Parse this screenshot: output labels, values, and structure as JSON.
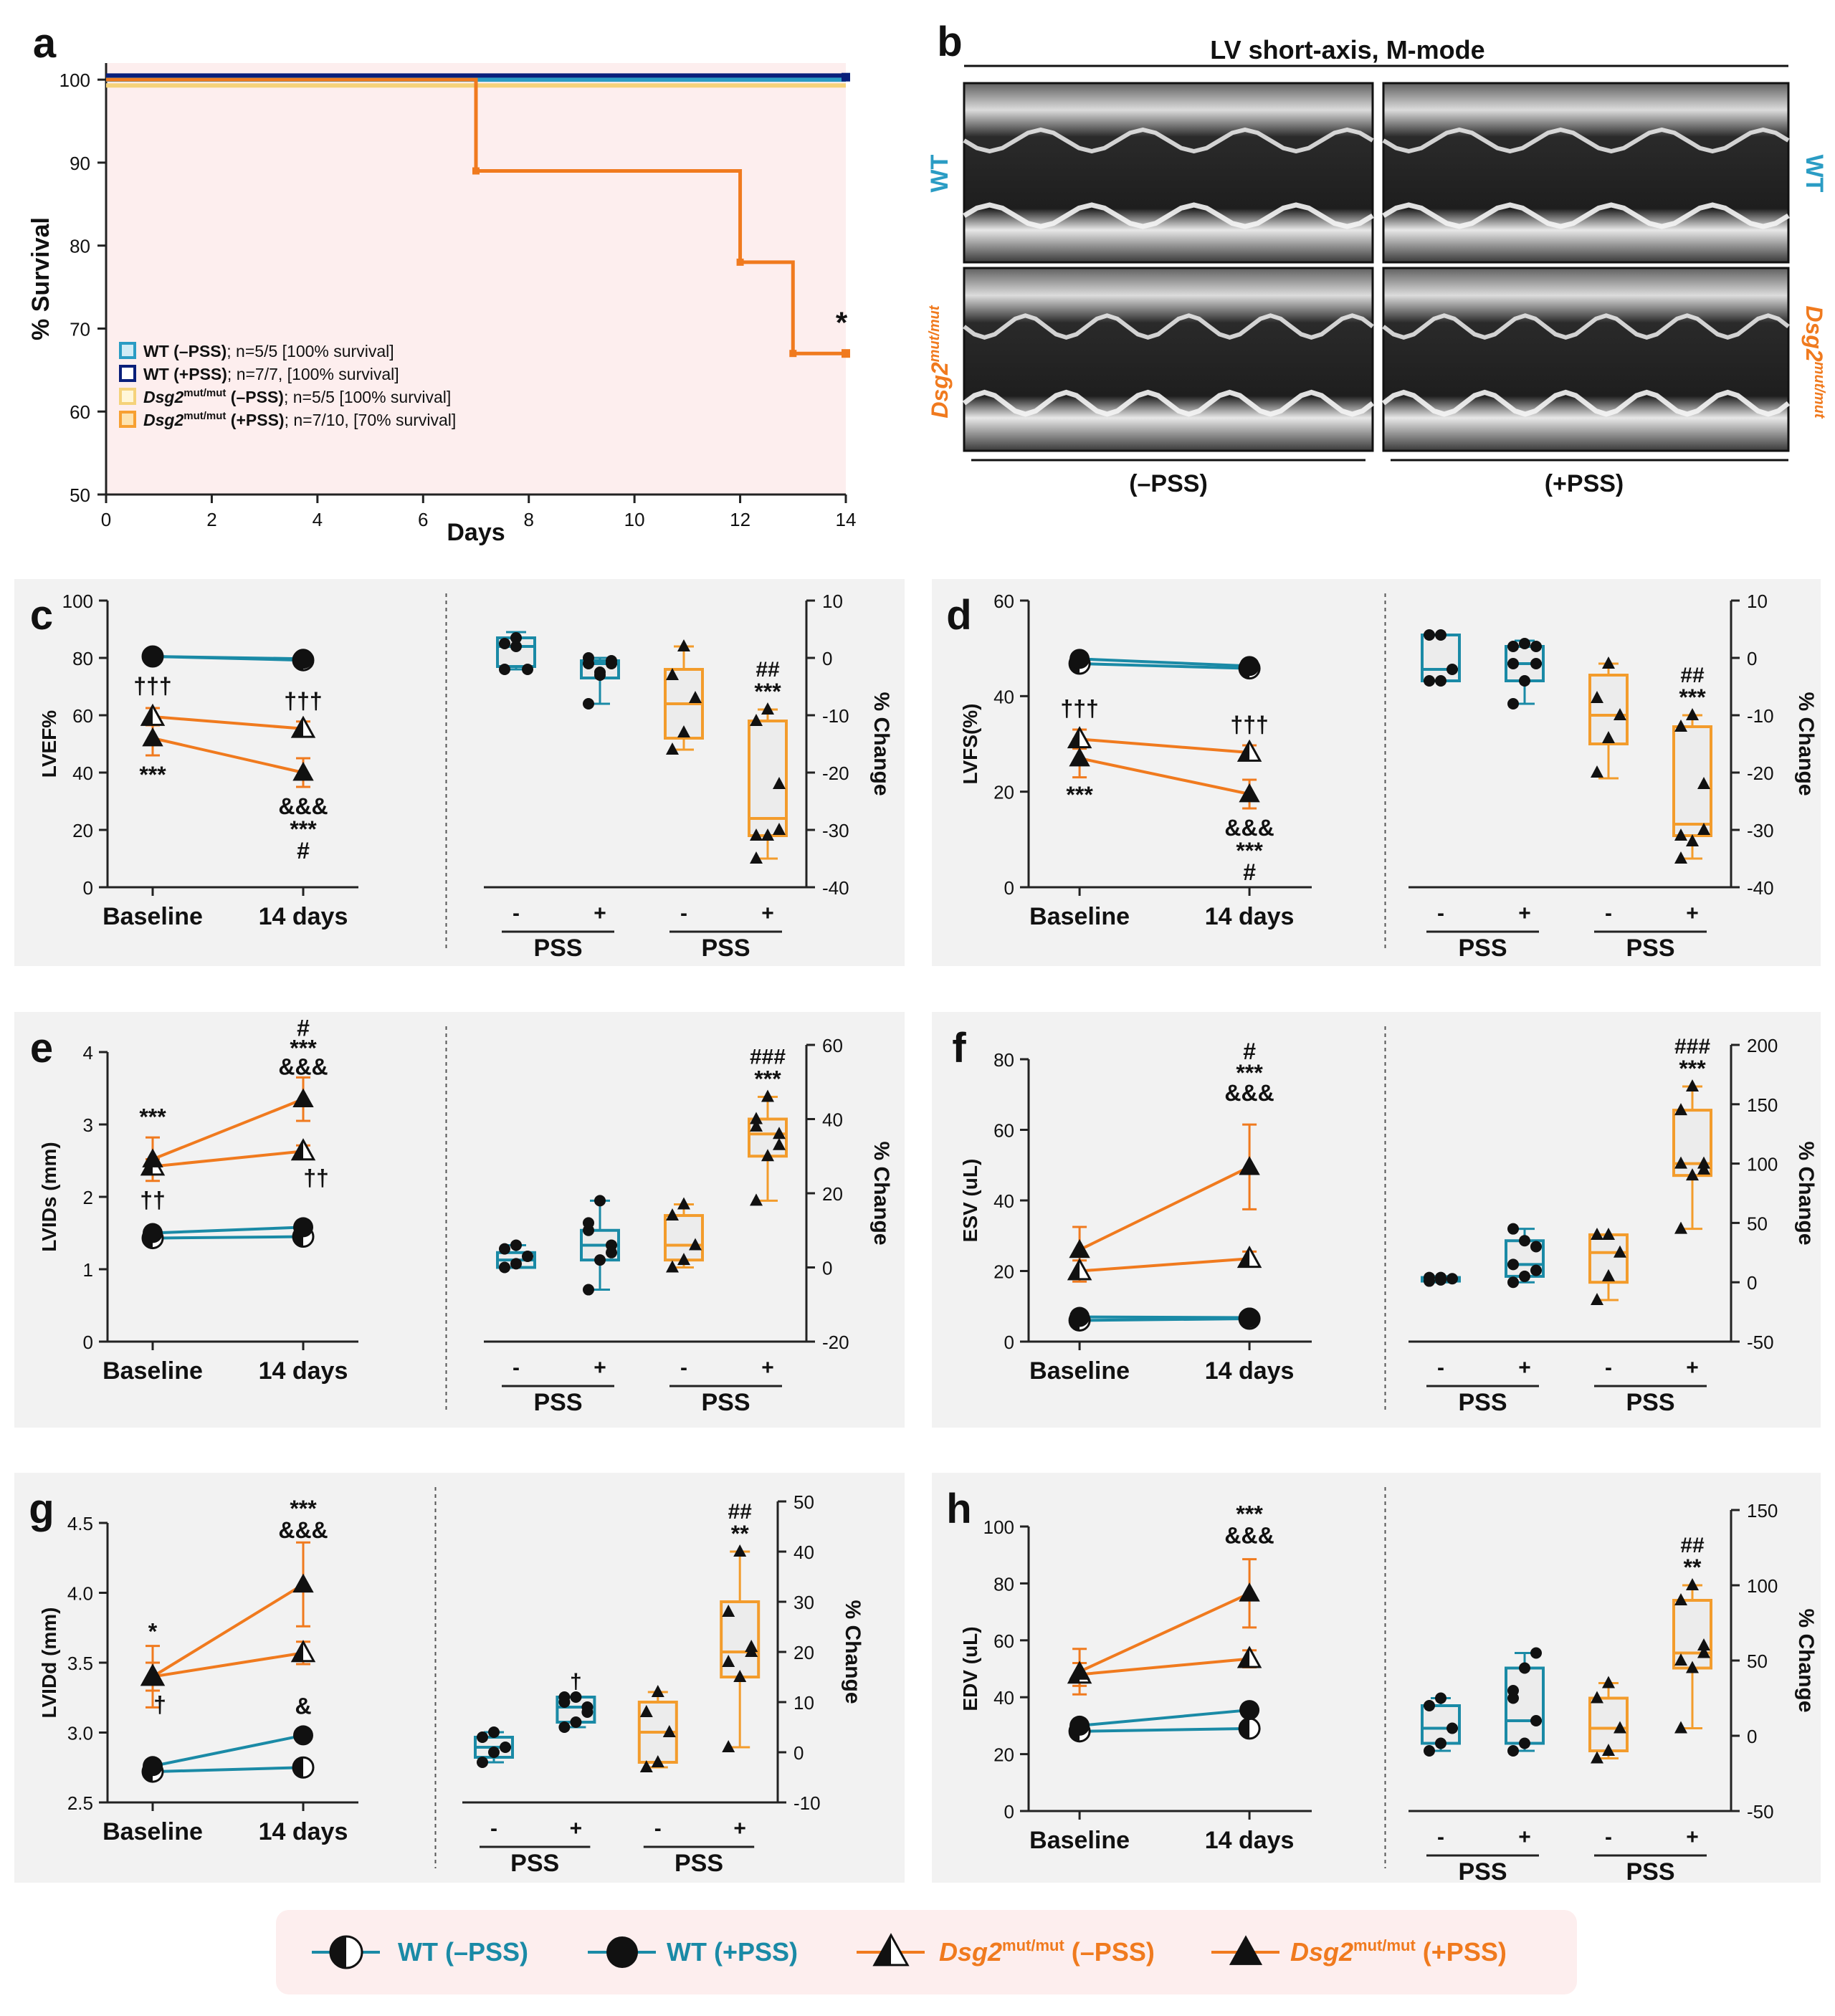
{
  "colors": {
    "wt_minus": "#2a9cc4",
    "wt_plus": "#0a1f7a",
    "dsg_minus": "#f5d27a",
    "dsg_plus": "#f07a1e",
    "teal": "#1a8aa6",
    "orange": "#f07a1e",
    "panel_bg": "#f2f2f2",
    "pink_bg": "#fdeeee"
  },
  "panel_a": {
    "letter": "a",
    "chart_data": {
      "type": "line",
      "xlabel": "Days",
      "ylabel": "% Survival",
      "xlim": [
        0,
        14
      ],
      "ylim": [
        50,
        102
      ],
      "xticks": [
        "0",
        "2",
        "4",
        "6",
        "8",
        "10",
        "12",
        "14"
      ],
      "yticks": [
        "50",
        "60",
        "70",
        "80",
        "90",
        "100"
      ],
      "annotation": "*",
      "series": [
        {
          "name": "WT (–PSS); n=5/5 [100% survival]",
          "color": "#2a9cc4",
          "x": [
            0,
            14
          ],
          "y": [
            100,
            100
          ]
        },
        {
          "name": "WT (+PSS); n=7/7, [100% survival]",
          "color": "#0a1f7a",
          "x": [
            0,
            14
          ],
          "y": [
            100.5,
            100.5
          ]
        },
        {
          "name": "Dsg2mut/mut (–PSS); n=5/5 [100% survival]",
          "color": "#f5d27a",
          "x": [
            0,
            14
          ],
          "y": [
            99.3,
            99.3
          ]
        },
        {
          "name": "Dsg2mut/mut (+PSS); n=7/10, [70% survival]",
          "color": "#f07a1e",
          "x": [
            0,
            7,
            7,
            12,
            12,
            13,
            13,
            14
          ],
          "y": [
            100,
            100,
            89,
            89,
            78,
            78,
            67,
            67
          ]
        }
      ]
    },
    "legend": [
      {
        "bold": "WT (–PSS)",
        "rest": "; n=5/5 [100% survival]",
        "color": "#2a9cc4",
        "fill": "#d0ecf6"
      },
      {
        "bold": "WT (+PSS)",
        "rest": "; n=7/7, [100% survival]",
        "color": "#0a1f7a",
        "fill": "#ffffff"
      },
      {
        "bold": "Dsg2",
        "sup": "mut/mut",
        "bold2": " (–PSS)",
        "rest": "; n=5/5 [100% survival]",
        "color": "#f5d27a",
        "fill": "#fff6d8"
      },
      {
        "bold": "Dsg2",
        "sup": "mut/mut",
        "bold2": " (+PSS)",
        "rest": "; n=7/10, [70% survival]",
        "color": "#f7a032",
        "fill": "#fde3b0"
      }
    ]
  },
  "panel_b": {
    "letter": "b",
    "title": "LV short-axis, M-mode",
    "row_wt": "WT",
    "row_dsg": "Dsg2",
    "row_dsg_sup": "mut/mut",
    "col_minus": "(–PSS)",
    "col_plus": "(+PSS)"
  },
  "legend_bottom": [
    {
      "label": "WT (–PSS)",
      "marker": "half-circle",
      "color": "#1a8aa6"
    },
    {
      "label": "WT (+PSS)",
      "marker": "circle",
      "color": "#1a8aa6"
    },
    {
      "label": "Dsg2",
      "sup": "mut/mut",
      "label2": " (–PSS)",
      "marker": "half-triangle",
      "color": "#f07a1e"
    },
    {
      "label": "Dsg2",
      "sup": "mut/mut",
      "label2": " (+PSS)",
      "marker": "triangle",
      "color": "#f07a1e"
    }
  ],
  "chart_data": [
    {
      "id": "c",
      "letter": "c",
      "type": "line",
      "ylabel": "LVEF%",
      "ylim": [
        0,
        100
      ],
      "yticks": [
        "0",
        "20",
        "40",
        "60",
        "80",
        "100"
      ],
      "categories": [
        "Baseline",
        "14 days"
      ],
      "series": [
        {
          "name": "WT (–PSS)",
          "values": [
            80.5,
            79.2
          ]
        },
        {
          "name": "WT (+PSS)",
          "values": [
            80.5,
            79.7
          ]
        },
        {
          "name": "Dsg2mut/mut (–PSS)",
          "values": [
            59.5,
            55.3
          ],
          "err": [
            3,
            2.5
          ]
        },
        {
          "name": "Dsg2mut/mut (+PSS)",
          "values": [
            52,
            40
          ],
          "err": [
            6,
            5
          ]
        }
      ],
      "annot": [
        "†††",
        "***",
        "†††",
        "&&&",
        "***",
        "#"
      ],
      "box": {
        "ylabel": "% Change",
        "ylim": [
          -40,
          10
        ],
        "yticks": [
          "-40",
          "-30",
          "-20",
          "-10",
          "0",
          "10"
        ],
        "group_label": "PSS",
        "xticks": [
          "-",
          "+",
          "-",
          "+"
        ],
        "groups": [
          {
            "name": "WT -PSS",
            "q": [
              -2,
              -1.5,
              2,
              3.5,
              4.5
            ]
          },
          {
            "name": "WT +PSS",
            "q": [
              -8,
              -3.5,
              -1,
              -0.5,
              0
            ]
          },
          {
            "name": "Dsg2 -PSS",
            "q": [
              -16,
              -14,
              -8,
              -2,
              2
            ]
          },
          {
            "name": "Dsg2 +PSS",
            "q": [
              -35,
              -31,
              -28,
              -11,
              -9
            ]
          }
        ],
        "points": [
          [
            2.5,
            2,
            -2,
            -2,
            3.5
          ],
          [
            -1,
            -3,
            -0.5,
            -8,
            -2.5,
            -1,
            0
          ],
          [
            -16,
            -13,
            -7,
            -3,
            2
          ],
          [
            -35,
            -31,
            -22,
            -11,
            -9,
            -30,
            -31
          ]
        ],
        "annot": [
          "##",
          "***"
        ]
      }
    },
    {
      "id": "d",
      "letter": "d",
      "type": "line",
      "ylabel": "LVFS(%)",
      "ylim": [
        0,
        60
      ],
      "yticks": [
        "0",
        "20",
        "40",
        "60"
      ],
      "categories": [
        "Baseline",
        "14 days"
      ],
      "series": [
        {
          "name": "WT (–PSS)",
          "values": [
            46.8,
            45.8
          ]
        },
        {
          "name": "WT (+PSS)",
          "values": [
            47.8,
            46.3
          ]
        },
        {
          "name": "Dsg2mut/mut (–PSS)",
          "values": [
            31,
            28.2
          ],
          "err": [
            2,
            1.5
          ]
        },
        {
          "name": "Dsg2mut/mut (+PSS)",
          "values": [
            27,
            19.5
          ],
          "err": [
            4,
            3
          ]
        }
      ],
      "annot": [
        "†††",
        "***",
        "†††",
        "&&&",
        "***",
        "#"
      ],
      "box": {
        "ylabel": "% Change",
        "ylim": [
          -40,
          10
        ],
        "yticks": [
          "-40",
          "-30",
          "-20",
          "-10",
          "0",
          "10"
        ],
        "group_label": "PSS",
        "xticks": [
          "-",
          "+",
          "-",
          "+"
        ],
        "groups": [
          {
            "name": "WT -PSS",
            "q": [
              -4,
              -4,
              -2,
              4,
              4
            ]
          },
          {
            "name": "WT +PSS",
            "q": [
              -8,
              -4,
              -1,
              2,
              3
            ]
          },
          {
            "name": "Dsg2 -PSS",
            "q": [
              -21,
              -15,
              -10,
              -3,
              -1
            ]
          },
          {
            "name": "Dsg2 +PSS",
            "q": [
              -35,
              -31,
              -29,
              -12,
              -10
            ]
          }
        ],
        "points": [
          [
            -4,
            -4,
            -2,
            4,
            4
          ],
          [
            -8,
            -4,
            -1,
            2,
            2.5,
            2,
            -1
          ],
          [
            -20,
            -14,
            -10,
            -7,
            -1
          ],
          [
            -35,
            -32,
            -22,
            -12,
            -10,
            -30,
            -31
          ]
        ],
        "annot": [
          "##",
          "***"
        ]
      }
    },
    {
      "id": "e",
      "letter": "e",
      "type": "line",
      "ylabel": "LVIDs (mm)",
      "ylim": [
        0,
        4
      ],
      "yticks": [
        "0",
        "1",
        "2",
        "3",
        "4"
      ],
      "categories": [
        "Baseline",
        "14 days"
      ],
      "series": [
        {
          "name": "WT (–PSS)",
          "values": [
            1.43,
            1.45
          ]
        },
        {
          "name": "WT (+PSS)",
          "values": [
            1.5,
            1.58
          ]
        },
        {
          "name": "Dsg2mut/mut (–PSS)",
          "values": [
            2.42,
            2.63
          ],
          "err": [
            0.1,
            0.08
          ]
        },
        {
          "name": "Dsg2mut/mut (+PSS)",
          "values": [
            2.52,
            3.35
          ],
          "err": [
            0.3,
            0.3
          ]
        }
      ],
      "annot": [
        "***",
        "††",
        "#",
        "***",
        "&&&",
        "††"
      ],
      "box": {
        "ylabel": "% Change",
        "ylim": [
          -20,
          60
        ],
        "yticks": [
          "-20",
          "0",
          "20",
          "40",
          "60"
        ],
        "group_label": "PSS",
        "xticks": [
          "-",
          "+",
          "-",
          "+"
        ],
        "groups": [
          {
            "name": "WT -PSS",
            "q": [
              0,
              0,
              2,
              4,
              6
            ]
          },
          {
            "name": "WT +PSS",
            "q": [
              -6,
              2,
              6,
              10,
              18
            ]
          },
          {
            "name": "Dsg2 -PSS",
            "q": [
              0,
              2,
              6,
              14,
              17
            ]
          },
          {
            "name": "Dsg2 +PSS",
            "q": [
              18,
              30,
              36,
              40,
              46
            ]
          }
        ],
        "points": [
          [
            0,
            1,
            3,
            5,
            6
          ],
          [
            -6,
            2,
            6,
            10,
            18,
            4,
            12
          ],
          [
            0,
            2,
            6,
            14,
            17
          ],
          [
            18,
            30,
            36,
            40,
            46,
            33,
            38
          ]
        ],
        "annot": [
          "###",
          "***"
        ]
      }
    },
    {
      "id": "f",
      "letter": "f",
      "type": "line",
      "ylabel": "ESV (uL)",
      "ylim": [
        0,
        80
      ],
      "yticks": [
        "0",
        "20",
        "40",
        "60",
        "80"
      ],
      "categories": [
        "Baseline",
        "14 days"
      ],
      "series": [
        {
          "name": "WT (–PSS)",
          "values": [
            6,
            6.5
          ]
        },
        {
          "name": "WT (+PSS)",
          "values": [
            7,
            6.8
          ]
        },
        {
          "name": "Dsg2mut/mut (–PSS)",
          "values": [
            20,
            23.5
          ],
          "err": [
            3,
            2
          ]
        },
        {
          "name": "Dsg2mut/mut (+PSS)",
          "values": [
            26,
            49.5
          ],
          "err": [
            6.5,
            12
          ]
        }
      ],
      "annot": [
        "#",
        "***",
        "&&&"
      ],
      "box": {
        "ylabel": "% Change",
        "ylim": [
          -50,
          200
        ],
        "yticks": [
          "-50",
          "0",
          "50",
          "100",
          "150",
          "200"
        ],
        "group_label": "PSS",
        "xticks": [
          "-",
          "+",
          "-",
          "+"
        ],
        "groups": [
          {
            "name": "WT -PSS",
            "q": [
              0,
              1,
              3,
              4,
              5
            ]
          },
          {
            "name": "WT +PSS",
            "q": [
              0,
              5,
              15,
              35,
              45
            ]
          },
          {
            "name": "Dsg2 -PSS",
            "q": [
              -15,
              0,
              25,
              40,
              40
            ]
          },
          {
            "name": "Dsg2 +PSS",
            "q": [
              45,
              90,
              100,
              145,
              165
            ]
          }
        ],
        "points": [
          [
            1,
            2,
            3,
            4,
            4
          ],
          [
            0,
            5,
            10,
            15,
            35,
            30,
            45
          ],
          [
            -15,
            5,
            25,
            40,
            40
          ],
          [
            45,
            90,
            100,
            145,
            165,
            95,
            100
          ]
        ],
        "annot": [
          "###",
          "***"
        ]
      }
    },
    {
      "id": "g",
      "letter": "g",
      "type": "line",
      "ylabel": "LVIDd (mm)",
      "ylim": [
        2.5,
        4.5
      ],
      "yticks": [
        "2.5",
        "3.0",
        "3.5",
        "4.0",
        "4.5"
      ],
      "categories": [
        "Baseline",
        "14 days"
      ],
      "series": [
        {
          "name": "WT (–PSS)",
          "values": [
            2.72,
            2.75
          ]
        },
        {
          "name": "WT (+PSS)",
          "values": [
            2.76,
            2.98
          ]
        },
        {
          "name": "Dsg2mut/mut (–PSS)",
          "values": [
            3.4,
            3.57
          ],
          "err": [
            0.1,
            0.08
          ]
        },
        {
          "name": "Dsg2mut/mut (+PSS)",
          "values": [
            3.4,
            4.06
          ],
          "err": [
            0.22,
            0.3
          ]
        }
      ],
      "annot": [
        "*",
        "†",
        "***",
        "&&&",
        "&"
      ],
      "box": {
        "ylabel": "% Change",
        "ylim": [
          -10,
          50
        ],
        "yticks": [
          "-10",
          "0",
          "10",
          "20",
          "30",
          "40",
          "50"
        ],
        "group_label": "PSS",
        "xticks": [
          "-",
          "+",
          "-",
          "+"
        ],
        "groups": [
          {
            "name": "WT -PSS",
            "q": [
              -2,
              -1,
              1,
              3,
              4
            ]
          },
          {
            "name": "WT +PSS",
            "q": [
              5,
              6,
              9,
              11,
              11
            ]
          },
          {
            "name": "Dsg2 -PSS",
            "q": [
              -3,
              -2,
              4,
              10,
              12
            ]
          },
          {
            "name": "Dsg2 +PSS",
            "q": [
              1,
              15,
              20,
              30,
              40
            ]
          }
        ],
        "points": [
          [
            -2,
            0,
            1,
            3,
            4
          ],
          [
            5,
            6,
            9,
            11,
            11,
            8,
            10
          ],
          [
            -3,
            -2,
            4,
            8,
            12
          ],
          [
            1,
            15,
            20,
            28,
            40,
            21,
            18
          ]
        ],
        "annot": [
          "##",
          "**"
        ],
        "extra": "†"
      }
    },
    {
      "id": "h",
      "letter": "h",
      "type": "line",
      "ylabel": "EDV (uL)",
      "ylim": [
        0,
        100
      ],
      "yticks": [
        "0",
        "20",
        "40",
        "60",
        "80",
        "100"
      ],
      "categories": [
        "Baseline",
        "14 days"
      ],
      "series": [
        {
          "name": "WT (–PSS)",
          "values": [
            28,
            29
          ]
        },
        {
          "name": "WT (+PSS)",
          "values": [
            30,
            35.5
          ]
        },
        {
          "name": "Dsg2mut/mut (–PSS)",
          "values": [
            48,
            53.5
          ],
          "err": [
            4,
            3
          ]
        },
        {
          "name": "Dsg2mut/mut (+PSS)",
          "values": [
            49,
            76.5
          ],
          "err": [
            8,
            12
          ]
        }
      ],
      "annot": [
        "***",
        "&&&"
      ],
      "box": {
        "ylabel": "% Change",
        "ylim": [
          -50,
          150
        ],
        "yticks": [
          "-50",
          "0",
          "50",
          "100",
          "150"
        ],
        "group_label": "PSS",
        "xticks": [
          "-",
          "+",
          "-",
          "+"
        ],
        "groups": [
          {
            "name": "WT -PSS",
            "q": [
              -10,
              -5,
              5,
              20,
              25
            ]
          },
          {
            "name": "WT +PSS",
            "q": [
              -10,
              -5,
              10,
              45,
              55
            ]
          },
          {
            "name": "Dsg2 -PSS",
            "q": [
              -15,
              -10,
              5,
              25,
              35
            ]
          },
          {
            "name": "Dsg2 +PSS",
            "q": [
              5,
              45,
              55,
              90,
              100
            ]
          }
        ],
        "points": [
          [
            -10,
            -5,
            5,
            20,
            25
          ],
          [
            -10,
            -5,
            10,
            25,
            45,
            55,
            30
          ],
          [
            -15,
            -10,
            5,
            25,
            35
          ],
          [
            5,
            45,
            55,
            90,
            100,
            60,
            50
          ]
        ],
        "annot": [
          "##",
          "**"
        ]
      }
    }
  ]
}
